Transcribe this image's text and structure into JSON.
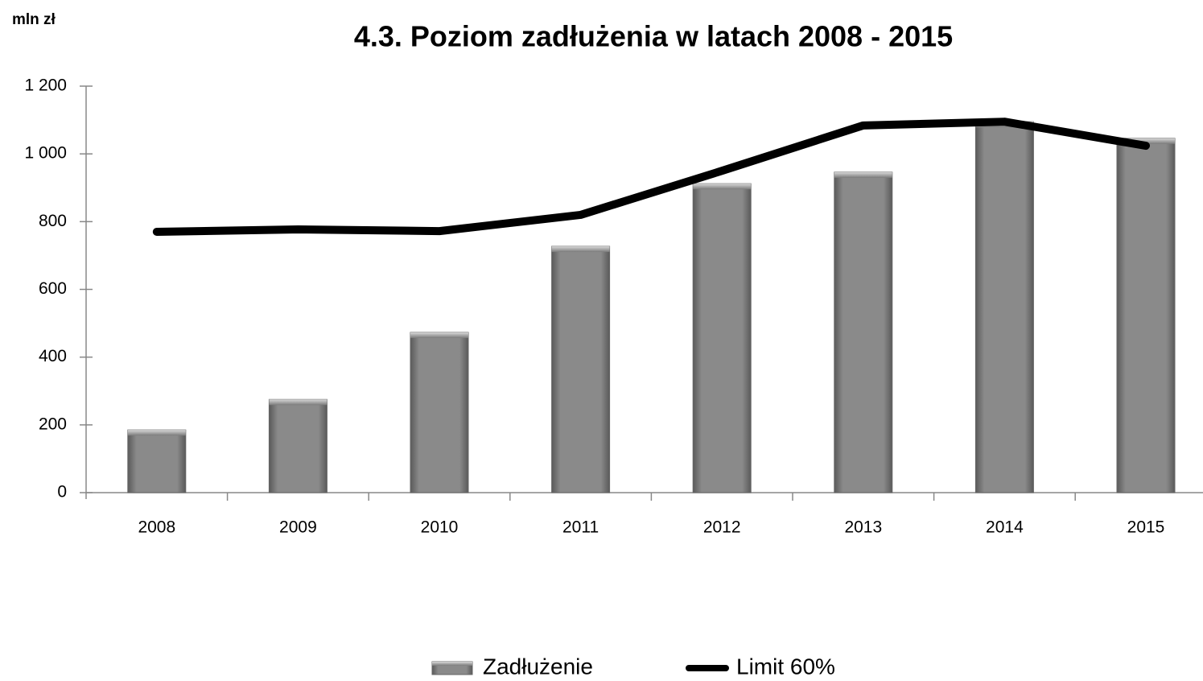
{
  "chart_data": {
    "type": "bar",
    "title": "4.3. Poziom zadłużenia w latach 2008 - 2015",
    "y_label": "mln zł",
    "categories": [
      "2008",
      "2009",
      "2010",
      "2011",
      "2012",
      "2013",
      "2014",
      "2015"
    ],
    "series": [
      {
        "name": "Zadłużenie",
        "type": "bar",
        "color": "#808080",
        "values": [
          185,
          275,
          473,
          727,
          912,
          946,
          1095,
          1046
        ]
      },
      {
        "name": "Limit 60%",
        "type": "line",
        "color": "#000000",
        "values": [
          770,
          777,
          772,
          820,
          950,
          1084,
          1095,
          1024
        ]
      }
    ],
    "ylim": [
      0,
      1200
    ],
    "yticks": [
      0,
      200,
      400,
      600,
      800,
      {
        "value": 1000,
        "label": "1 000"
      },
      {
        "value": 1200,
        "label": "1 200"
      }
    ],
    "grid": false,
    "legend": "bottom"
  }
}
